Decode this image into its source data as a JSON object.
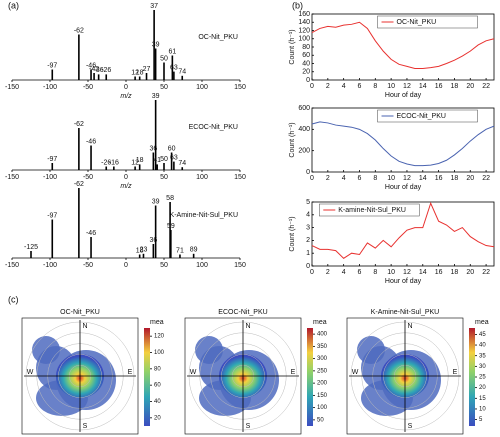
{
  "panels": [
    "(a)",
    "(b)",
    "(c)"
  ],
  "chart_data": [
    {
      "type": "spectrum",
      "name": "OC-Nit_PKU",
      "xlabel": "m/z",
      "color": "#000000",
      "x": [
        -97,
        -62,
        -46,
        -42,
        -36,
        -26,
        12,
        18,
        27,
        37,
        39,
        50,
        61,
        63,
        74
      ],
      "values": [
        0.15,
        0.65,
        0.15,
        0.1,
        0.08,
        0.08,
        0.05,
        0.05,
        0.1,
        1.0,
        0.45,
        0.25,
        0.35,
        0.12,
        0.06
      ],
      "xlim": [
        -150,
        150
      ],
      "xticks": [
        -150,
        -100,
        -50,
        0,
        50,
        100,
        150
      ],
      "ylim": [
        0,
        1
      ]
    },
    {
      "type": "spectrum",
      "name": "ECOC-Nit_PKU",
      "xlabel": "m/z",
      "color": "#000000",
      "x": [
        -97,
        -62,
        -46,
        -26,
        -16,
        12,
        18,
        36,
        39,
        41,
        50,
        60,
        63,
        74
      ],
      "values": [
        0.1,
        0.6,
        0.35,
        0.05,
        0.05,
        0.05,
        0.08,
        0.25,
        1.0,
        0.08,
        0.1,
        0.25,
        0.12,
        0.04
      ],
      "xlim": [
        -150,
        150
      ],
      "xticks": [
        -150,
        -100,
        -50,
        0,
        50,
        100,
        150
      ],
      "ylim": [
        0,
        1
      ]
    },
    {
      "type": "spectrum",
      "name": "K-Amine-Nit-Sul_PKU",
      "color": "#000000",
      "x": [
        -125,
        -97,
        -62,
        -46,
        18,
        23,
        36,
        39,
        58,
        59,
        71,
        89
      ],
      "values": [
        0.1,
        0.55,
        1.0,
        0.3,
        0.05,
        0.06,
        0.2,
        0.75,
        0.8,
        0.4,
        0.05,
        0.06
      ],
      "xlim": [
        -150,
        150
      ],
      "xticks": [
        -150,
        -100,
        -50,
        0,
        50,
        100,
        150
      ],
      "ylim": [
        0,
        1
      ]
    },
    {
      "type": "line",
      "xlabel": "Hour of day",
      "ylabel": "Count (h⁻¹)",
      "x": [
        0,
        1,
        2,
        3,
        4,
        5,
        6,
        7,
        8,
        9,
        10,
        11,
        12,
        13,
        14,
        15,
        16,
        17,
        18,
        19,
        20,
        21,
        22,
        23
      ],
      "series": [
        {
          "name": "OC-Nit_PKU",
          "color": "#e8312f",
          "values": [
            115,
            125,
            130,
            128,
            133,
            135,
            140,
            125,
            95,
            70,
            50,
            38,
            33,
            28,
            28,
            30,
            33,
            40,
            48,
            58,
            70,
            85,
            95,
            100
          ]
        }
      ],
      "xlim": [
        0,
        23
      ],
      "xticks": [
        0,
        2,
        4,
        6,
        8,
        10,
        12,
        14,
        16,
        18,
        20,
        22
      ],
      "ylim": [
        0,
        160
      ],
      "yticks": [
        0,
        20,
        40,
        60,
        80,
        100,
        120,
        140,
        160
      ]
    },
    {
      "type": "line",
      "xlabel": "Hour of day",
      "ylabel": "Count (h⁻¹)",
      "x": [
        0,
        1,
        2,
        3,
        4,
        5,
        6,
        7,
        8,
        9,
        10,
        11,
        12,
        13,
        14,
        15,
        16,
        17,
        18,
        19,
        20,
        21,
        22,
        23
      ],
      "series": [
        {
          "name": "ECOC-Nit_PKU",
          "color": "#4a63b0",
          "values": [
            450,
            470,
            460,
            440,
            430,
            420,
            400,
            360,
            300,
            220,
            150,
            100,
            75,
            60,
            60,
            65,
            80,
            110,
            160,
            220,
            290,
            350,
            400,
            430
          ]
        }
      ],
      "xlim": [
        0,
        23
      ],
      "xticks": [
        0,
        2,
        4,
        6,
        8,
        10,
        12,
        14,
        16,
        18,
        20,
        22
      ],
      "ylim": [
        0,
        600
      ],
      "yticks": [
        0,
        200,
        400,
        600
      ]
    },
    {
      "type": "line",
      "xlabel": "Hour of day",
      "ylabel": "Count (h⁻¹)",
      "x": [
        0,
        1,
        2,
        3,
        4,
        5,
        6,
        7,
        8,
        9,
        10,
        11,
        12,
        13,
        14,
        15,
        16,
        17,
        18,
        19,
        20,
        21,
        22,
        23
      ],
      "series": [
        {
          "name": "K-amine-Nit-Sul_PKU",
          "color": "#e8312f",
          "values": [
            1.6,
            1.3,
            1.3,
            1.2,
            0.6,
            1.0,
            0.9,
            1.8,
            1.4,
            2.0,
            1.5,
            2.2,
            2.8,
            3.0,
            3.0,
            4.9,
            3.5,
            3.2,
            2.7,
            3.0,
            2.3,
            1.9,
            1.6,
            1.5
          ]
        }
      ],
      "xlim": [
        0,
        23
      ],
      "xticks": [
        0,
        2,
        4,
        6,
        8,
        10,
        12,
        14,
        16,
        18,
        20,
        22
      ],
      "ylim": [
        0,
        5
      ],
      "yticks": [
        0,
        1,
        2,
        3,
        4,
        5
      ]
    },
    {
      "type": "polar",
      "title": "OC-Nit_PKU",
      "colorbar_label": "mea",
      "directions": [
        "N",
        "E",
        "S",
        "W"
      ],
      "clim": [
        10,
        130
      ],
      "cticks": [
        20,
        40,
        60,
        80,
        100,
        120
      ]
    },
    {
      "type": "polar",
      "title": "ECOC-Nit_PKU",
      "colorbar_label": "mea",
      "directions": [
        "N",
        "E",
        "S",
        "W"
      ],
      "clim": [
        25,
        425
      ],
      "cticks": [
        50,
        100,
        150,
        200,
        250,
        300,
        350,
        400
      ]
    },
    {
      "type": "polar",
      "title": "K-Amine-Nit-Sul_PKU",
      "colorbar_label": "mea",
      "directions": [
        "N",
        "E",
        "S",
        "W"
      ],
      "clim": [
        2,
        48
      ],
      "cticks": [
        5,
        10,
        15,
        20,
        25,
        30,
        35,
        40,
        45
      ]
    }
  ]
}
